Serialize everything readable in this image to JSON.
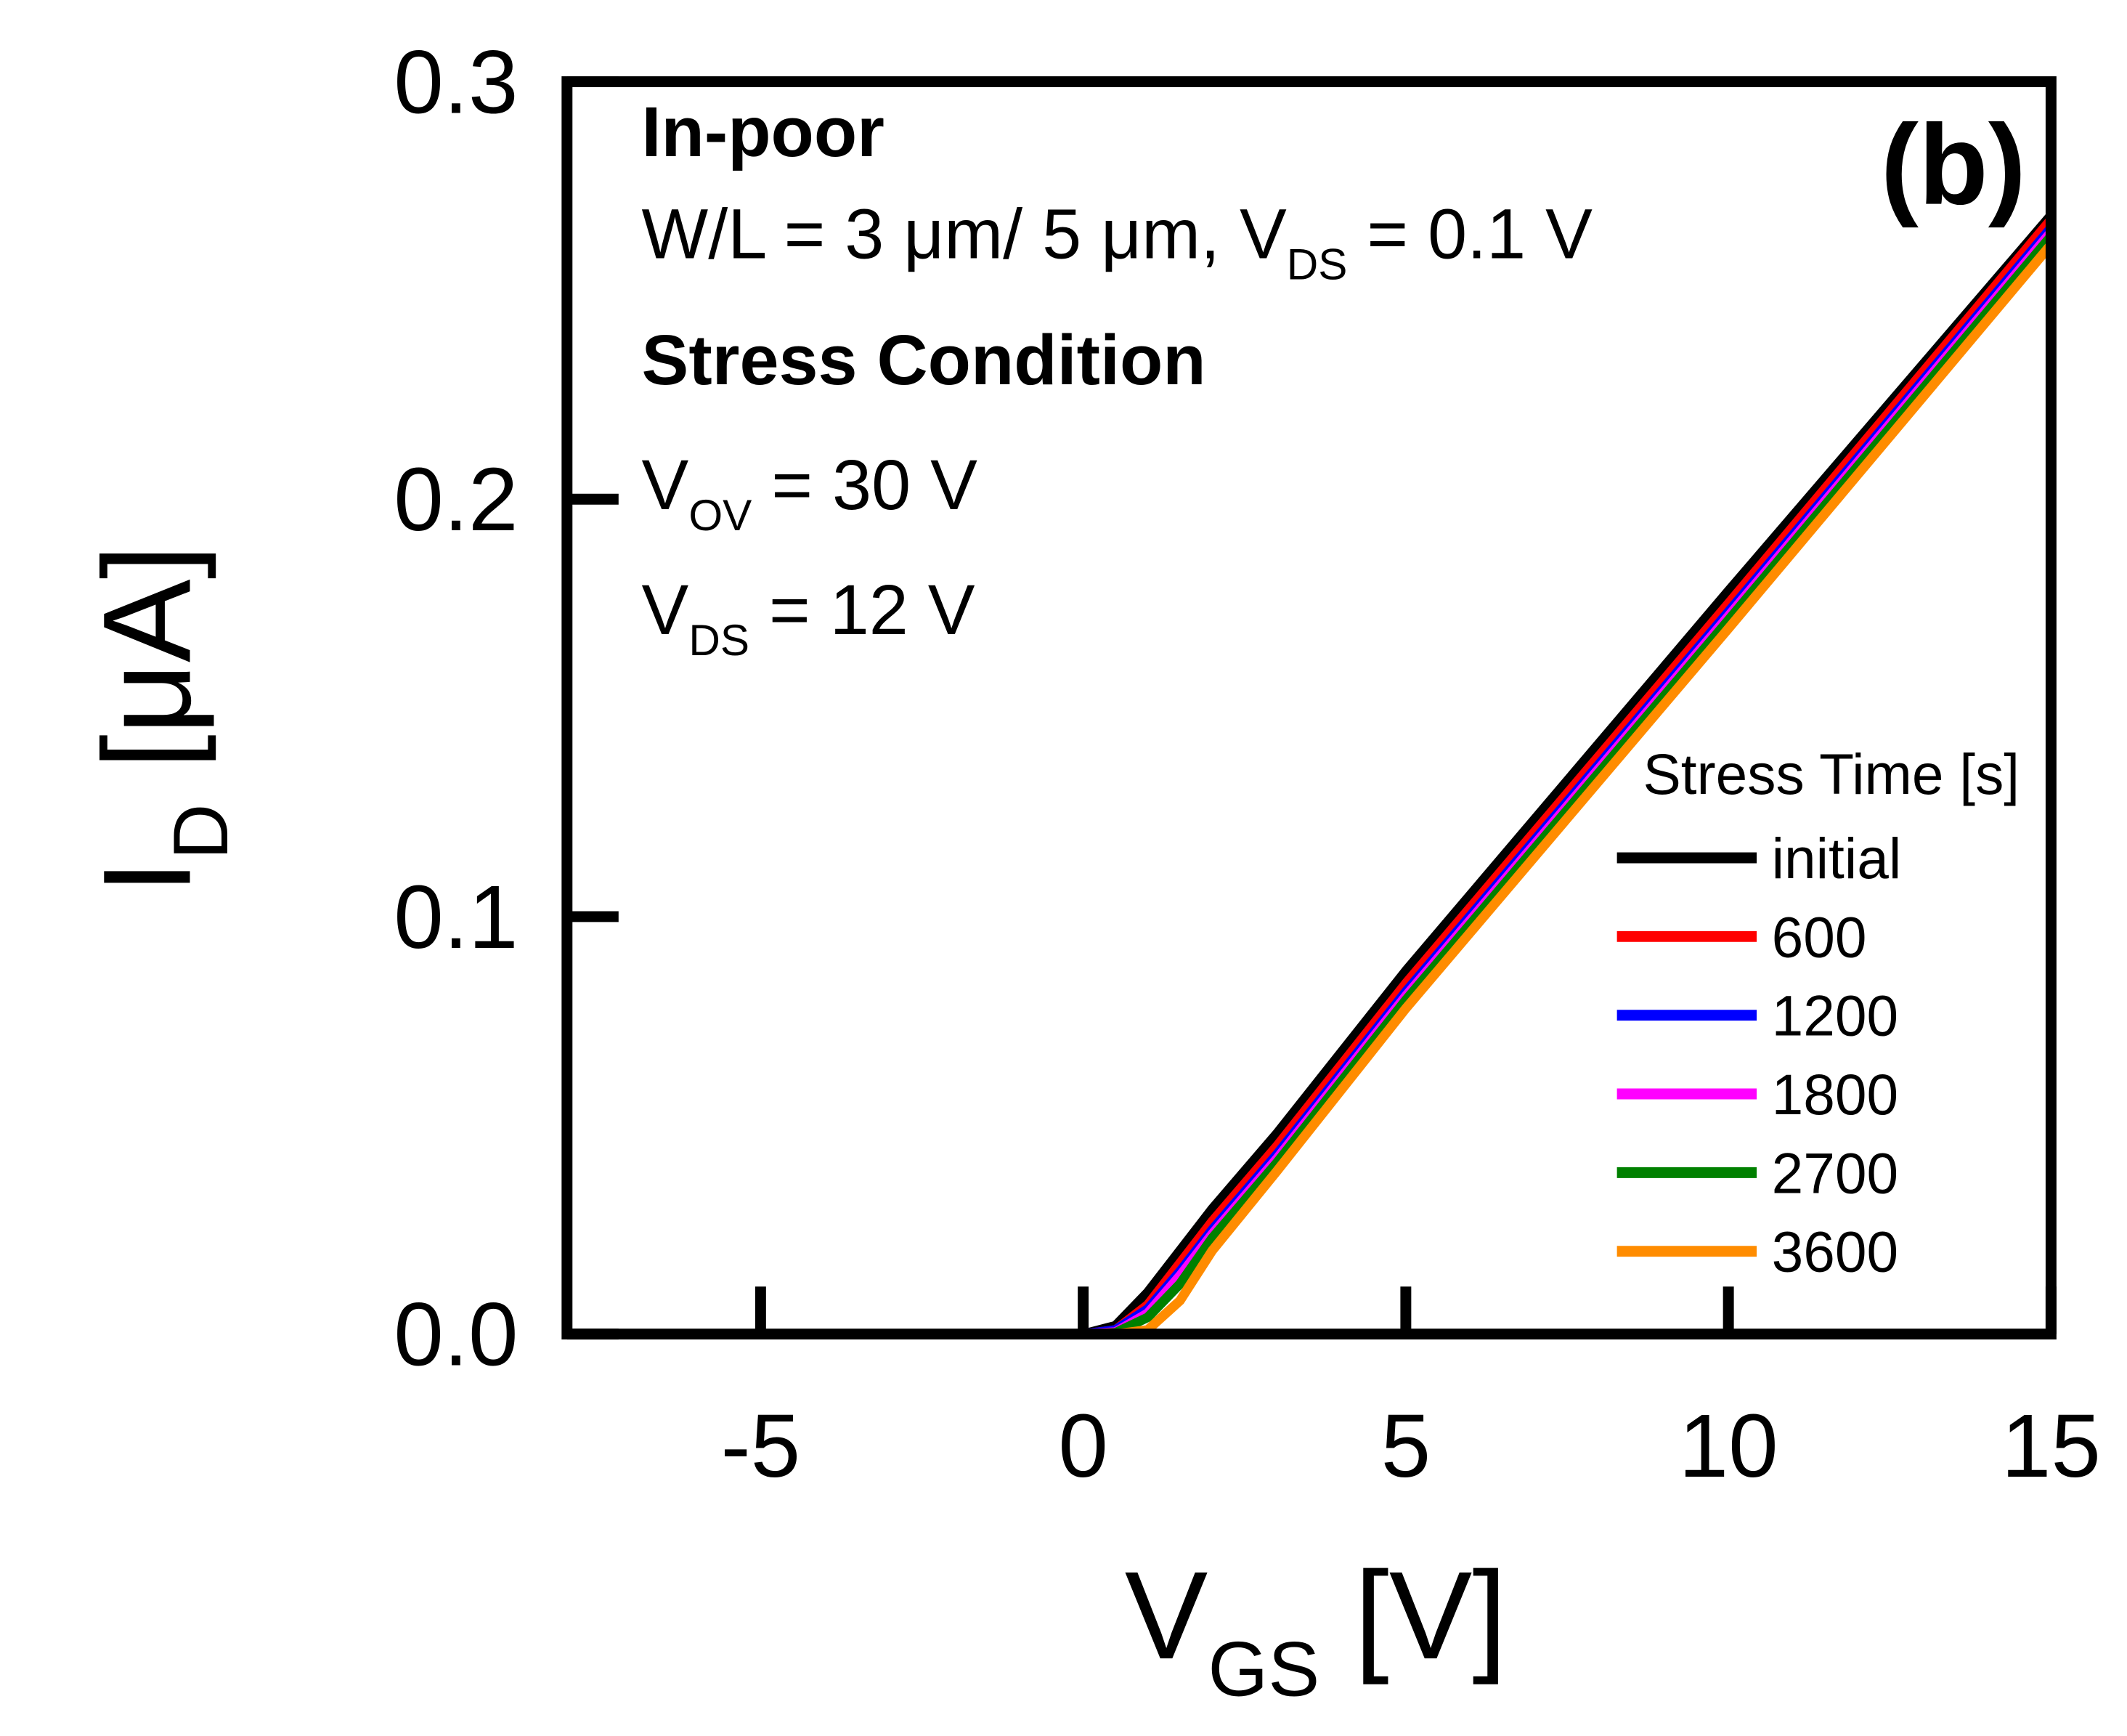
{
  "chart_data": {
    "type": "line",
    "panel_label": "(b)",
    "annotations": [
      [
        "In-poor"
      ],
      [
        "W/L = 3 μm/ 5 μm, V",
        "DS",
        " = 0.1 V"
      ],
      [
        "Stress Condition"
      ],
      [
        "V",
        "OV",
        " = 30 V"
      ],
      [
        "V",
        "DS",
        " = 12 V"
      ]
    ],
    "xlabel": [
      "V",
      "GS",
      " [V]"
    ],
    "ylabel": [
      "I",
      "D",
      " [μA]"
    ],
    "xlim": [
      -8,
      15
    ],
    "xticks": [
      -5,
      0,
      5,
      10,
      15
    ],
    "ylim": [
      0,
      0.3
    ],
    "yticks": [
      {
        "value": 0,
        "label": "0.0"
      },
      0.1,
      0.2,
      0.3
    ],
    "legend_title": "Stress Time [s]",
    "x": [
      -8,
      -5,
      0,
      0.5,
      1,
      1.5,
      2,
      3,
      5,
      10,
      15
    ],
    "series": [
      {
        "name": "initial",
        "color": "#000000",
        "values": [
          0,
          0,
          0,
          0.002,
          0.01,
          0.02,
          0.03,
          0.048,
          0.087,
          0.178,
          0.268
        ]
      },
      {
        "name": "600",
        "color": "#ff0000",
        "values": [
          0,
          0,
          0,
          0.001,
          0.007,
          0.017,
          0.027,
          0.045,
          0.084,
          0.175,
          0.267
        ]
      },
      {
        "name": "1200",
        "color": "#0000ff",
        "values": [
          0,
          0,
          0,
          0.001,
          0.006,
          0.015,
          0.025,
          0.043,
          0.082,
          0.173,
          0.265
        ]
      },
      {
        "name": "1800",
        "color": "#ff00ff",
        "values": [
          0,
          0,
          0,
          0.0005,
          0.005,
          0.014,
          0.024,
          0.042,
          0.081,
          0.172,
          0.264
        ]
      },
      {
        "name": "2700",
        "color": "#008000",
        "values": [
          0,
          0,
          0,
          0.0003,
          0.004,
          0.012,
          0.023,
          0.041,
          0.08,
          0.171,
          0.263
        ]
      },
      {
        "name": "3600",
        "color": "#ff8c00",
        "values": [
          0,
          0,
          0,
          0,
          0.001,
          0.008,
          0.02,
          0.039,
          0.078,
          0.169,
          0.261
        ]
      }
    ]
  }
}
